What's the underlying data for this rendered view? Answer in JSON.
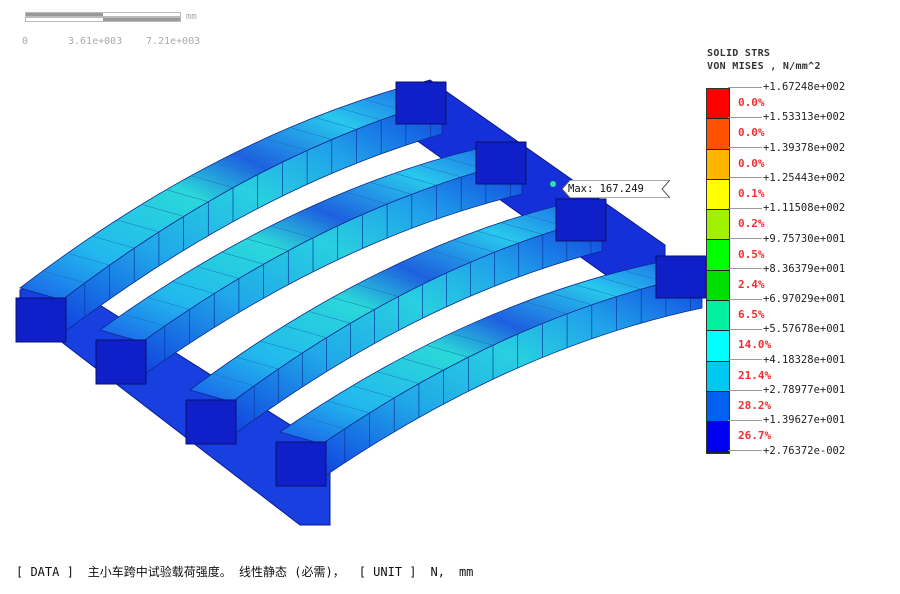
{
  "scale_bar": {
    "unit": "mm",
    "ticks": [
      "0",
      "3.61e+003",
      "7.21e+003"
    ]
  },
  "legend": {
    "title_line1": "SOLID STRS",
    "title_line2": "VON MISES , N/mm^2",
    "values": [
      "+1.67248e+002",
      "+1.53313e+002",
      "+1.39378e+002",
      "+1.25443e+002",
      "+1.11508e+002",
      "+9.75730e+001",
      "+8.36379e+001",
      "+6.97029e+001",
      "+5.57678e+001",
      "+4.18328e+001",
      "+2.78977e+001",
      "+1.39627e+001",
      "+2.76372e-002"
    ],
    "percents": [
      "0.0%",
      "0.0%",
      "0.0%",
      "0.1%",
      "0.2%",
      "0.5%",
      "2.4%",
      "6.5%",
      "14.0%",
      "21.4%",
      "28.2%",
      "26.7%"
    ],
    "colors": [
      "#ff0000",
      "#ff5000",
      "#ffb400",
      "#ffff00",
      "#a0f000",
      "#00ff00",
      "#00e000",
      "#00f0a0",
      "#00ffff",
      "#00c8f0",
      "#0060f0",
      "#0000f0"
    ]
  },
  "max_label": "Max: 167.249",
  "footer": {
    "data_tag": "[ DATA ]",
    "description": "主小车跨中试验载荷强度。 线性静态 (必需)，",
    "unit_tag": "[ UNIT ]",
    "unit_force": "N,",
    "unit_length": "mm"
  }
}
